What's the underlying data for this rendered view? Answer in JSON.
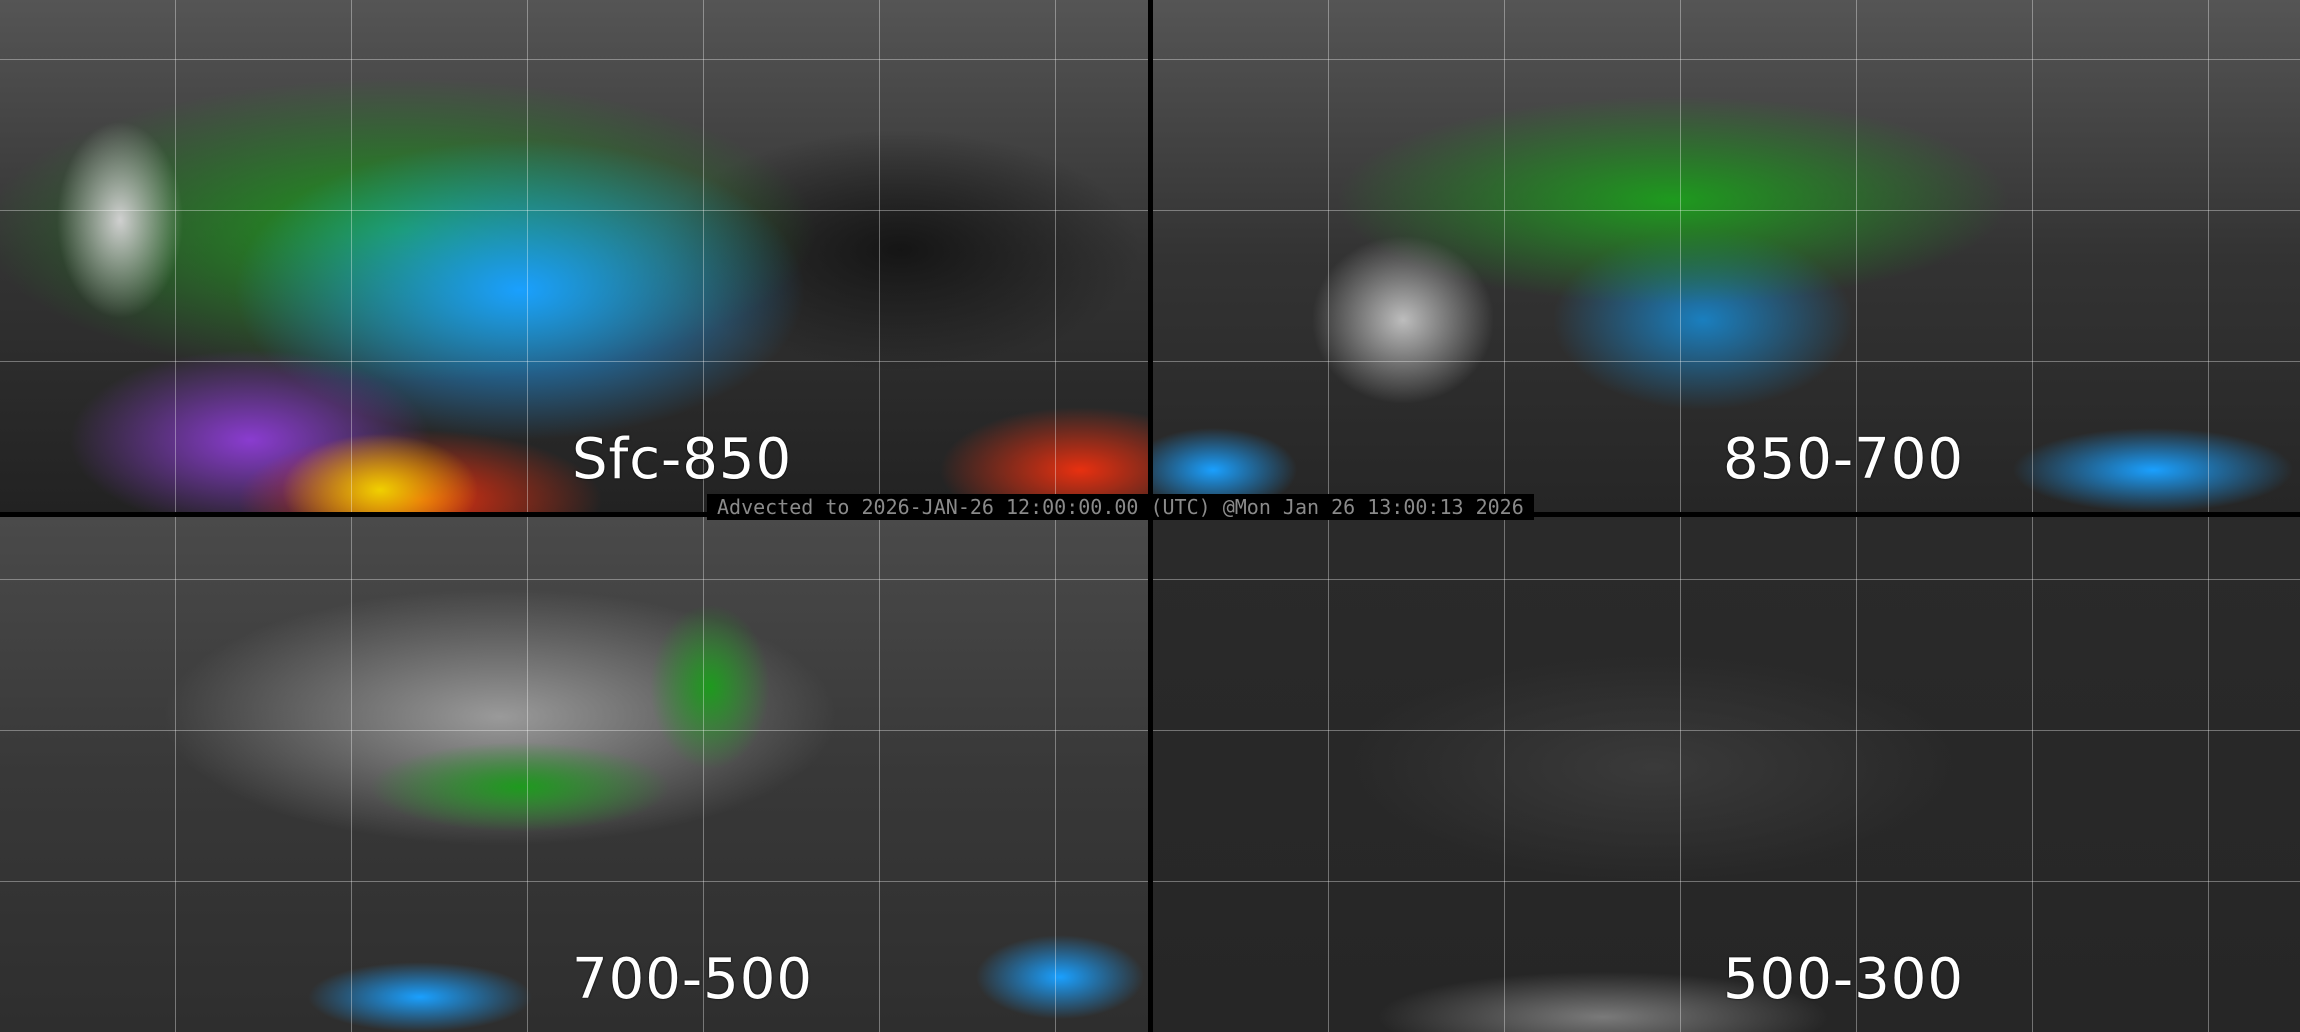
{
  "panels": [
    {
      "label": "Sfc-850",
      "palette": "color"
    },
    {
      "label": "850-700",
      "palette": "color"
    },
    {
      "label": "700-500",
      "palette": "grayscale-green"
    },
    {
      "label": "500-300",
      "palette": "grayscale"
    }
  ],
  "timestamp": "Advected to 2026-JAN-26 12:00:00.00 (UTC) @Mon Jan 26 13:00:13 2026",
  "colors": {
    "low": "#3a3a3a",
    "mid": "#d8d8d8",
    "green": "#1e9a1e",
    "blue": "#1aa0ff",
    "purple": "#8a3cd0",
    "red": "#e83010",
    "yellow": "#f0d000"
  }
}
